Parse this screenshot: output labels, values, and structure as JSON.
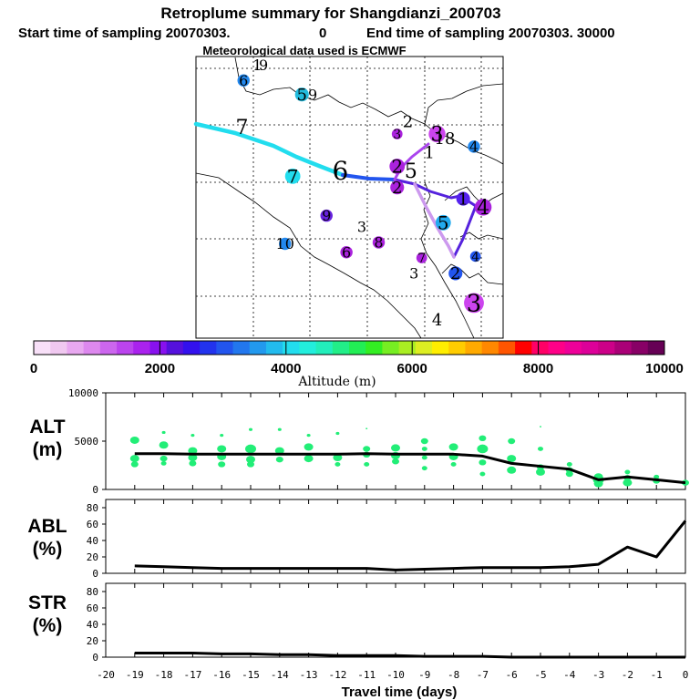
{
  "header": {
    "title": "Retroplume summary for Shangdianzi_200703",
    "start_label": "Start time of sampling 20070303.",
    "start_value": "0",
    "end_label": "End time of sampling 20070303. 30000",
    "met_line": "Meteorological data used is ECMWF"
  },
  "colors": {
    "axis": "#000000",
    "scatter": "#22ee77",
    "line": "#000000",
    "track_main": "#22ddee",
    "track_mid": "#2255ee",
    "track_purple": "#5522dd",
    "track_pink": "#cc99ee"
  },
  "map": {
    "labels": [
      {
        "text": "1",
        "lx": 0.2,
        "ly": 0.03,
        "size": 16,
        "dot": null
      },
      {
        "text": "9",
        "lx": 0.22,
        "ly": 0.03,
        "size": 16,
        "dot": null
      },
      {
        "text": "6",
        "lx": 0.155,
        "ly": 0.085,
        "size": 16,
        "dot": "#2288ee"
      },
      {
        "text": "5",
        "lx": 0.345,
        "ly": 0.135,
        "size": 18,
        "dot": "#22bbdd"
      },
      {
        "text": "9",
        "lx": 0.38,
        "ly": 0.135,
        "size": 16,
        "dot": null
      },
      {
        "text": "7",
        "lx": 0.15,
        "ly": 0.25,
        "size": 22,
        "dot": null
      },
      {
        "text": "7",
        "lx": 0.315,
        "ly": 0.425,
        "size": 20,
        "dot": "#22ddee"
      },
      {
        "text": "6",
        "lx": 0.47,
        "ly": 0.405,
        "size": 28,
        "dot": null
      },
      {
        "text": "2",
        "lx": 0.69,
        "ly": 0.23,
        "size": 18,
        "dot": null
      },
      {
        "text": "3",
        "lx": 0.655,
        "ly": 0.275,
        "size": 14,
        "dot": "#aa22dd"
      },
      {
        "text": "3",
        "lx": 0.785,
        "ly": 0.275,
        "size": 22,
        "dot": "#cc44ee"
      },
      {
        "text": "18",
        "lx": 0.81,
        "ly": 0.29,
        "size": 18,
        "dot": null
      },
      {
        "text": "1",
        "lx": 0.76,
        "ly": 0.34,
        "size": 18,
        "dot": null
      },
      {
        "text": "4",
        "lx": 0.905,
        "ly": 0.32,
        "size": 16,
        "dot": "#2288ee"
      },
      {
        "text": "2",
        "lx": 0.655,
        "ly": 0.39,
        "size": 20,
        "dot": "#aa22dd"
      },
      {
        "text": "5",
        "lx": 0.7,
        "ly": 0.405,
        "size": 22,
        "dot": null
      },
      {
        "text": "2",
        "lx": 0.655,
        "ly": 0.465,
        "size": 18,
        "dot": "#aa22dd"
      },
      {
        "text": "1",
        "lx": 0.87,
        "ly": 0.505,
        "size": 18,
        "dot": "#5522ee"
      },
      {
        "text": "4",
        "lx": 0.935,
        "ly": 0.535,
        "size": 22,
        "dot": "#aa22dd"
      },
      {
        "text": "5",
        "lx": 0.805,
        "ly": 0.59,
        "size": 20,
        "dot": "#22aaee"
      },
      {
        "text": "9",
        "lx": 0.425,
        "ly": 0.565,
        "size": 16,
        "dot": "#6622dd"
      },
      {
        "text": "3",
        "lx": 0.54,
        "ly": 0.605,
        "size": 16,
        "dot": null
      },
      {
        "text": "10",
        "lx": 0.29,
        "ly": 0.665,
        "size": 16,
        "dot": "#2288ee"
      },
      {
        "text": "8",
        "lx": 0.595,
        "ly": 0.66,
        "size": 16,
        "dot": "#aa22dd"
      },
      {
        "text": "6",
        "lx": 0.49,
        "ly": 0.695,
        "size": 16,
        "dot": "#aa22dd"
      },
      {
        "text": "7",
        "lx": 0.735,
        "ly": 0.715,
        "size": 14,
        "dot": "#aa22dd"
      },
      {
        "text": "4",
        "lx": 0.91,
        "ly": 0.71,
        "size": 14,
        "dot": "#2255ee"
      },
      {
        "text": "3",
        "lx": 0.71,
        "ly": 0.77,
        "size": 16,
        "dot": null
      },
      {
        "text": "2",
        "lx": 0.845,
        "ly": 0.77,
        "size": 18,
        "dot": "#2255ee"
      },
      {
        "text": "3",
        "lx": 0.905,
        "ly": 0.875,
        "size": 26,
        "dot": "#cc44ee"
      },
      {
        "text": "4",
        "lx": 0.785,
        "ly": 0.935,
        "size": 18,
        "dot": null
      }
    ]
  },
  "colorbar": {
    "ticks": [
      "0",
      "2000",
      "4000",
      "6000",
      "8000",
      "10000"
    ],
    "label": "Altitude (m)",
    "colors": [
      "#f8e0f8",
      "#f0c8f0",
      "#e8a8f0",
      "#dd88ee",
      "#cc66ee",
      "#bb44ee",
      "#aa22ee",
      "#8811ee",
      "#5511dd",
      "#3311ee",
      "#2233ee",
      "#2255ee",
      "#2277ee",
      "#2299ee",
      "#22bbee",
      "#22ddee",
      "#22eedd",
      "#22eebb",
      "#22ee88",
      "#22ee55",
      "#33ee22",
      "#77ee22",
      "#aaee22",
      "#ddee22",
      "#ffee00",
      "#ffcc00",
      "#ffaa00",
      "#ff8800",
      "#ff5500",
      "#ff0000",
      "#ff0066",
      "#ff0088",
      "#ee0099",
      "#dd0099",
      "#cc0088",
      "#aa0077",
      "#880066",
      "#660055"
    ]
  },
  "chart_data": [
    {
      "type": "scatter",
      "title": "ALT",
      "ylabel": "ALT (m)",
      "ylabel_top": "ALT",
      "ylabel_bottom": "(m)",
      "xlabel": "",
      "xlim": [
        -20,
        0
      ],
      "ylim": [
        0,
        10000
      ],
      "yticks": [
        0,
        5000,
        10000
      ],
      "ytick_labels": [
        "0",
        "5000",
        "10000"
      ],
      "line": {
        "x": [
          -19,
          -18,
          -17,
          -16,
          -15,
          -14,
          -13,
          -12,
          -11,
          -10,
          -9,
          -8,
          -7,
          -6,
          -5,
          -4,
          -3,
          -2,
          -1,
          0
        ],
        "y": [
          3700,
          3700,
          3650,
          3650,
          3650,
          3650,
          3650,
          3650,
          3700,
          3650,
          3650,
          3650,
          3450,
          2700,
          2400,
          2100,
          1000,
          1300,
          1000,
          700
        ]
      },
      "points": [
        {
          "x": -19,
          "y": 5100,
          "s": 5
        },
        {
          "x": -19,
          "y": 3200,
          "s": 5
        },
        {
          "x": -19,
          "y": 2600,
          "s": 4
        },
        {
          "x": -18,
          "y": 5900,
          "s": 2
        },
        {
          "x": -18,
          "y": 4600,
          "s": 5
        },
        {
          "x": -18,
          "y": 3200,
          "s": 4
        },
        {
          "x": -18,
          "y": 2700,
          "s": 3
        },
        {
          "x": -17,
          "y": 5600,
          "s": 2
        },
        {
          "x": -17,
          "y": 4000,
          "s": 5
        },
        {
          "x": -17,
          "y": 3300,
          "s": 5
        },
        {
          "x": -17,
          "y": 2700,
          "s": 4
        },
        {
          "x": -16,
          "y": 5600,
          "s": 2
        },
        {
          "x": -16,
          "y": 4200,
          "s": 5
        },
        {
          "x": -16,
          "y": 3400,
          "s": 5
        },
        {
          "x": -16,
          "y": 2600,
          "s": 4
        },
        {
          "x": -15,
          "y": 6200,
          "s": 2
        },
        {
          "x": -15,
          "y": 4200,
          "s": 6
        },
        {
          "x": -15,
          "y": 3100,
          "s": 5
        },
        {
          "x": -15,
          "y": 2600,
          "s": 4
        },
        {
          "x": -14,
          "y": 6200,
          "s": 2
        },
        {
          "x": -14,
          "y": 4000,
          "s": 5
        },
        {
          "x": -14,
          "y": 3100,
          "s": 4
        },
        {
          "x": -13,
          "y": 5600,
          "s": 2
        },
        {
          "x": -13,
          "y": 4400,
          "s": 5
        },
        {
          "x": -13,
          "y": 3200,
          "s": 5
        },
        {
          "x": -12,
          "y": 5800,
          "s": 2
        },
        {
          "x": -12,
          "y": 3300,
          "s": 5
        },
        {
          "x": -12,
          "y": 2600,
          "s": 3
        },
        {
          "x": -11,
          "y": 6300,
          "s": 1
        },
        {
          "x": -11,
          "y": 4200,
          "s": 4
        },
        {
          "x": -11,
          "y": 3600,
          "s": 4
        },
        {
          "x": -11,
          "y": 2600,
          "s": 3
        },
        {
          "x": -10,
          "y": 4300,
          "s": 5
        },
        {
          "x": -10,
          "y": 3500,
          "s": 5
        },
        {
          "x": -10,
          "y": 2900,
          "s": 4
        },
        {
          "x": -9,
          "y": 5000,
          "s": 4
        },
        {
          "x": -9,
          "y": 4200,
          "s": 3
        },
        {
          "x": -9,
          "y": 3300,
          "s": 3
        },
        {
          "x": -9,
          "y": 2200,
          "s": 3
        },
        {
          "x": -8,
          "y": 4400,
          "s": 5
        },
        {
          "x": -8,
          "y": 3400,
          "s": 5
        },
        {
          "x": -8,
          "y": 2600,
          "s": 3
        },
        {
          "x": -7,
          "y": 5300,
          "s": 4
        },
        {
          "x": -7,
          "y": 4200,
          "s": 6
        },
        {
          "x": -7,
          "y": 2800,
          "s": 4
        },
        {
          "x": -7,
          "y": 1600,
          "s": 3
        },
        {
          "x": -6,
          "y": 5000,
          "s": 4
        },
        {
          "x": -6,
          "y": 3200,
          "s": 5
        },
        {
          "x": -6,
          "y": 2000,
          "s": 5
        },
        {
          "x": -5,
          "y": 6500,
          "s": 1
        },
        {
          "x": -5,
          "y": 4200,
          "s": 3
        },
        {
          "x": -5,
          "y": 2300,
          "s": 4
        },
        {
          "x": -5,
          "y": 1800,
          "s": 5
        },
        {
          "x": -4,
          "y": 2600,
          "s": 3
        },
        {
          "x": -4,
          "y": 2000,
          "s": 4
        },
        {
          "x": -4,
          "y": 1600,
          "s": 4
        },
        {
          "x": -3,
          "y": 1300,
          "s": 5
        },
        {
          "x": -3,
          "y": 1000,
          "s": 6
        },
        {
          "x": -3,
          "y": 600,
          "s": 5
        },
        {
          "x": -2,
          "y": 1800,
          "s": 3
        },
        {
          "x": -2,
          "y": 1200,
          "s": 4
        },
        {
          "x": -2,
          "y": 700,
          "s": 5
        },
        {
          "x": -1,
          "y": 1300,
          "s": 3
        },
        {
          "x": -1,
          "y": 900,
          "s": 4
        },
        {
          "x": 0,
          "y": 700,
          "s": 4
        }
      ]
    },
    {
      "type": "line",
      "title": "ABL",
      "ylabel": "ABL (%)",
      "ylabel_top": "ABL",
      "ylabel_bottom": "(%)",
      "xlabel": "",
      "xlim": [
        -20,
        0
      ],
      "ylim": [
        0,
        90
      ],
      "yticks": [
        0,
        20,
        40,
        60,
        80
      ],
      "ytick_labels": [
        "0",
        "20",
        "40",
        "60",
        "80"
      ],
      "x": [
        -19,
        -18,
        -17,
        -16,
        -15,
        -14,
        -13,
        -12,
        -11,
        -10,
        -9,
        -8,
        -7,
        -6,
        -5,
        -4,
        -3,
        -2,
        -1,
        0
      ],
      "y": [
        9,
        8,
        7,
        6,
        6,
        6,
        6,
        6,
        6,
        4,
        5,
        6,
        7,
        7,
        7,
        8,
        11,
        32,
        20,
        64
      ]
    },
    {
      "type": "line",
      "title": "STR",
      "ylabel": "STR (%)",
      "ylabel_top": "STR",
      "ylabel_bottom": "(%)",
      "xlabel": "Travel time (days)",
      "xlim": [
        -20,
        0
      ],
      "ylim": [
        0,
        90
      ],
      "yticks": [
        0,
        20,
        40,
        60,
        80
      ],
      "ytick_labels": [
        "0",
        "20",
        "40",
        "60",
        "80"
      ],
      "xticks": [
        -20,
        -19,
        -18,
        -17,
        -16,
        -15,
        -14,
        -13,
        -12,
        -11,
        -10,
        -9,
        -8,
        -7,
        -6,
        -5,
        -4,
        -3,
        -2,
        -1,
        0
      ],
      "xtick_labels": [
        "-20",
        "-19",
        "-18",
        "-17",
        "-16",
        "-15",
        "-14",
        "-13",
        "-12",
        "-11",
        "-10",
        "-9",
        "-8",
        "-7",
        "-6",
        "-5",
        "-4",
        "-3",
        "-2",
        "-1",
        "0"
      ],
      "x": [
        -19,
        -18,
        -17,
        -16,
        -15,
        -14,
        -13,
        -12,
        -11,
        -10,
        -9,
        -8,
        -7,
        -6,
        -5,
        -4,
        -3,
        -2,
        -1,
        0
      ],
      "y": [
        5,
        5,
        5,
        4,
        4,
        3,
        3,
        2,
        2,
        2,
        1,
        1,
        1,
        0,
        0,
        0,
        0,
        0,
        0,
        0
      ]
    }
  ]
}
